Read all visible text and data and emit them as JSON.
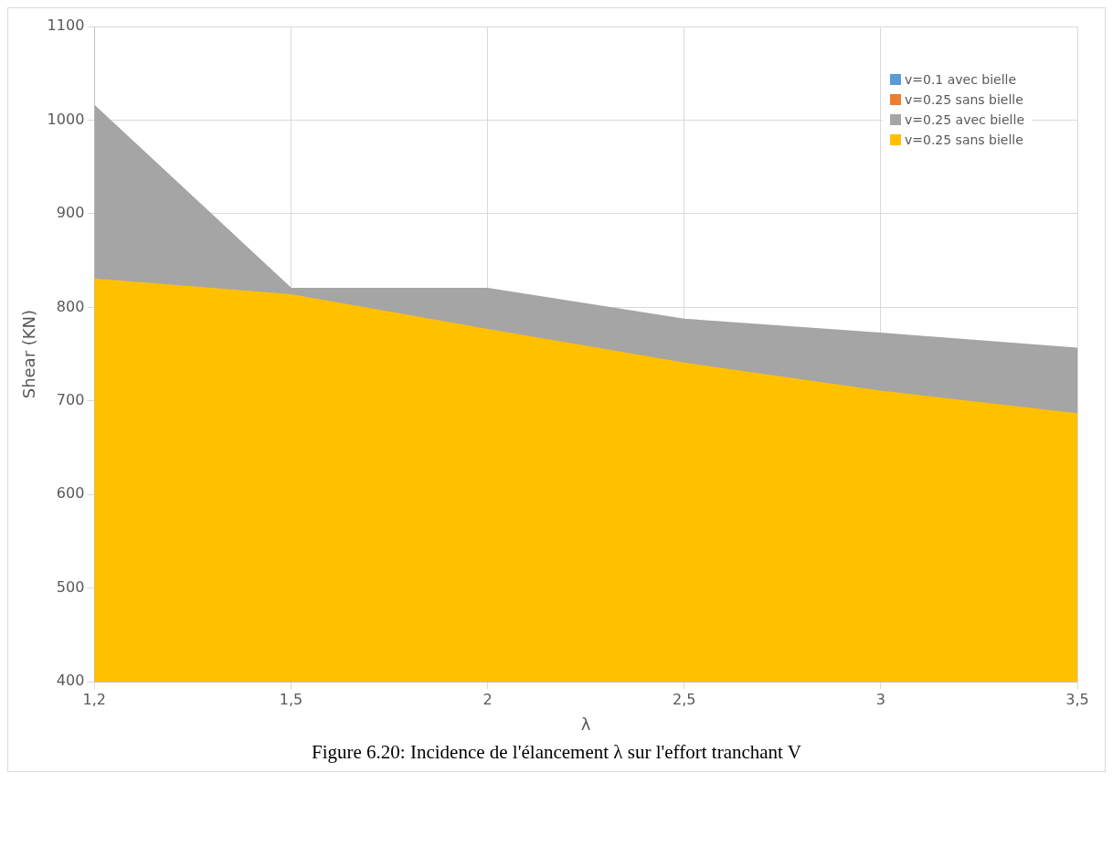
{
  "chart_data": {
    "type": "area",
    "xlabel": "λ",
    "ylabel": "Shear (KN)",
    "categories": [
      "1,2",
      "1,5",
      "2",
      "2,5",
      "3",
      "3,5"
    ],
    "series": [
      {
        "name": "v=0.1 avec bielle",
        "color": "#5b9bd5",
        "values": [
          null,
          null,
          null,
          null,
          null,
          null
        ]
      },
      {
        "name": "v=0.25 sans bielle",
        "color": "#ed7d31",
        "values": [
          null,
          null,
          null,
          null,
          null,
          null
        ]
      },
      {
        "name": "v=0.25 avec bielle",
        "color": "#a5a5a5",
        "values": [
          1015,
          820,
          820,
          787,
          772,
          756
        ]
      },
      {
        "name": "v=0.25 sans bielle",
        "color": "#ffc000",
        "values": [
          830,
          813,
          776,
          740,
          710,
          686
        ]
      }
    ],
    "ylim": [
      400,
      1100
    ],
    "yticks": [
      400,
      500,
      600,
      700,
      800,
      900,
      1000,
      1100
    ],
    "grid": true,
    "legend": "top right",
    "annotations": [
      "Figure 6.20:  Incidence de l'élancement λ sur l'effort tranchant V"
    ]
  }
}
